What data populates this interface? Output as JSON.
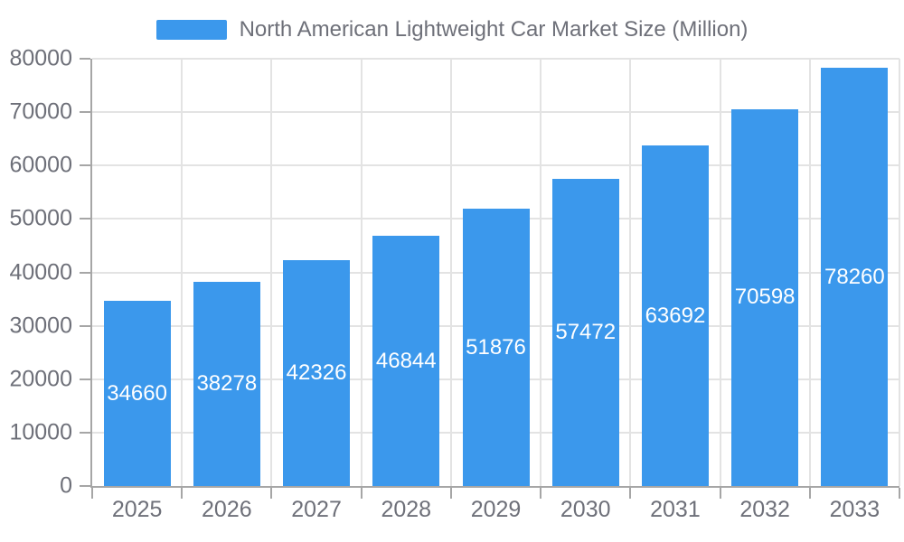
{
  "chart_data": {
    "type": "bar",
    "title": "North American Lightweight Car Market Size (Million)",
    "legend": {
      "position": "top",
      "entries": [
        "North American Lightweight Car Market Size (Million)"
      ]
    },
    "categories": [
      "2025",
      "2026",
      "2027",
      "2028",
      "2029",
      "2030",
      "2031",
      "2032",
      "2033"
    ],
    "series": [
      {
        "name": "North American Lightweight Car Market Size (Million)",
        "values": [
          34660,
          38278,
          42326,
          46844,
          51876,
          57472,
          63692,
          70598,
          78260
        ]
      }
    ],
    "xlabel": "",
    "ylabel": "",
    "ylim": [
      0,
      80000
    ],
    "ytick_step": 10000,
    "ytick_labels": [
      "0",
      "10000",
      "20000",
      "30000",
      "40000",
      "50000",
      "60000",
      "70000",
      "80000"
    ],
    "grid": true,
    "value_labels_position": "inside-center",
    "colors": {
      "bar": "#3b98ec",
      "value_label": "#ffffff",
      "axis_text": "#6e7079",
      "axis_line": "#a6a6a6",
      "gridline": "#e3e3e3",
      "background": "#ffffff"
    }
  }
}
